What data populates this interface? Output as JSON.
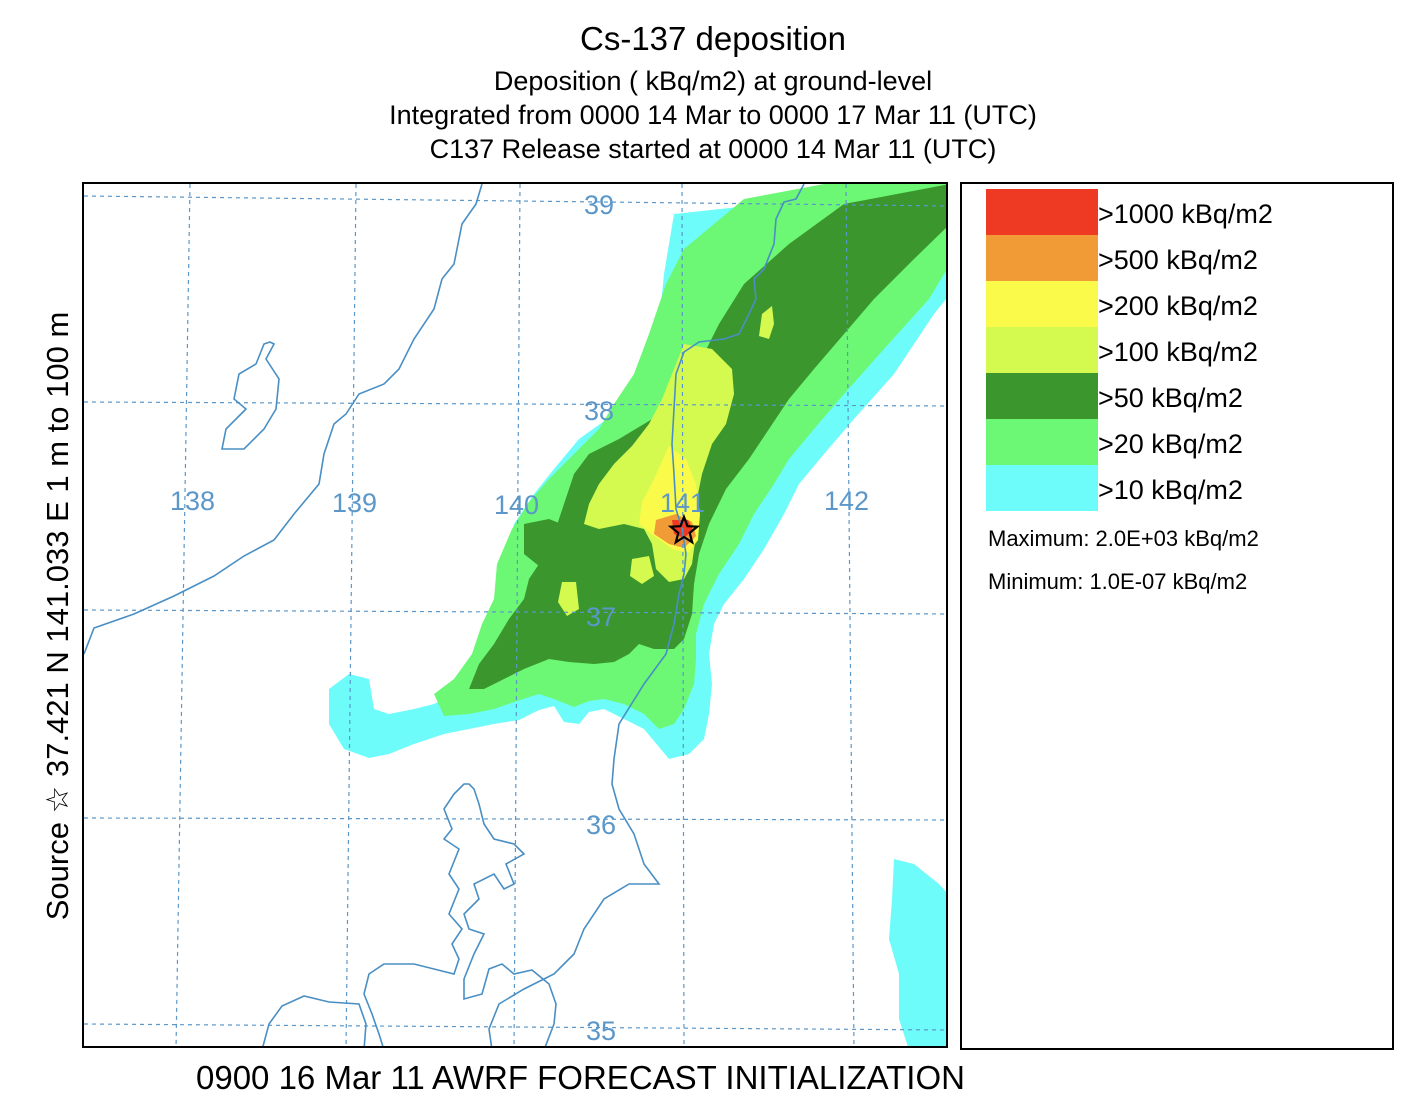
{
  "title": {
    "line1": "Cs-137 deposition",
    "line2": "Deposition  ( kBq/m2) at ground-level",
    "line3": "Integrated from 0000 14 Mar to 0000 17 Mar 11 (UTC)",
    "line4": "C137 Release started at 0000 14 Mar 11 (UTC)"
  },
  "side_label": "Source ☆ 37.421  N 141.033  E     1 m to  100 m",
  "footer": "0900 16 Mar 11 AWRF FORECAST INITIALIZATION",
  "map": {
    "longitude_labels": [
      "138",
      "139",
      "140",
      "141",
      "142"
    ],
    "latitude_labels": [
      "39",
      "38",
      "37",
      "36",
      "35"
    ],
    "source_marker": {
      "symbol": "star-icon",
      "lat": 37.421,
      "lon": 141.033
    },
    "colors": {
      "grid": "#5b97c9",
      "coastline": "#4a8fc4",
      "gt1000": "#ee3a22",
      "gt500": "#f09b36",
      "gt200": "#fafa4a",
      "gt100": "#d4fa50",
      "gt50": "#3a962d",
      "gt20": "#6cf774",
      "gt10": "#6efcfa"
    }
  },
  "legend": {
    "items": [
      {
        "label": ">1000  kBq/m2",
        "color": "#ee3a22"
      },
      {
        "label": ">500  kBq/m2",
        "color": "#f09b36"
      },
      {
        "label": ">200  kBq/m2",
        "color": "#fafa4a"
      },
      {
        "label": ">100  kBq/m2",
        "color": "#d4fa50"
      },
      {
        "label": ">50  kBq/m2",
        "color": "#3a962d"
      },
      {
        "label": ">20  kBq/m2",
        "color": "#6cf774"
      },
      {
        "label": ">10  kBq/m2",
        "color": "#6efcfa"
      }
    ],
    "maximum": "Maximum: 2.0E+03  kBq/m2",
    "minimum": "Minimum: 1.0E-07  kBq/m2"
  }
}
